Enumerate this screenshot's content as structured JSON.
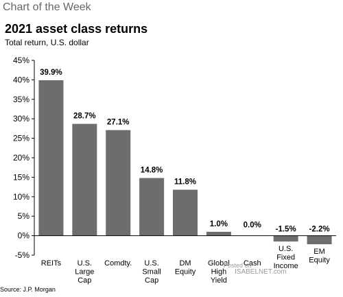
{
  "header": {
    "kicker": "Chart of the Week",
    "title": "2021 asset class returns",
    "subtitle": "Total return, U.S. dollar"
  },
  "source": "Source: J.P. Morgan",
  "watermark": {
    "line1": "Posted on",
    "line2": "ISABELNET.com"
  },
  "colors": {
    "bar": "#6d6d6d",
    "axis": "#000000"
  },
  "chart_data": {
    "type": "bar",
    "title": "2021 asset class returns",
    "subtitle": "Total return, U.S. dollar",
    "categories": [
      [
        "REITs"
      ],
      [
        "U.S.",
        "Large",
        "Cap"
      ],
      [
        "Comdty."
      ],
      [
        "U.S.",
        "Small",
        "Cap"
      ],
      [
        "DM",
        "Equity"
      ],
      [
        "Global",
        "High",
        "Yield"
      ],
      [
        "Cash"
      ],
      [
        "U.S.",
        "Fixed",
        "Income"
      ],
      [
        "EM",
        "Equity"
      ]
    ],
    "values": [
      39.9,
      28.7,
      27.1,
      14.8,
      11.8,
      1.0,
      0.0,
      -1.5,
      -2.2
    ],
    "value_labels": [
      "39.9%",
      "28.7%",
      "27.1%",
      "14.8%",
      "11.8%",
      "1.0%",
      "0.0%",
      "-1.5%",
      "-2.2%"
    ],
    "yticks": [
      "45%",
      "40%",
      "35%",
      "30%",
      "25%",
      "20%",
      "15%",
      "10%",
      "5%",
      "0%",
      "-5%"
    ],
    "ylim": [
      -5,
      45
    ],
    "grid": false,
    "legend": "none"
  }
}
